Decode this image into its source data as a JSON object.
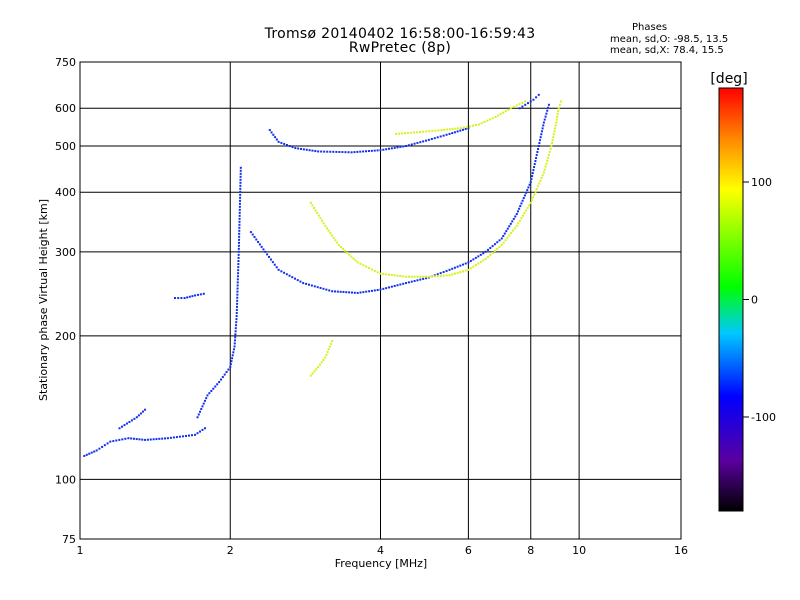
{
  "header": {
    "title": "Tromsø 20140402 16:58:00-16:59:43",
    "subtitle": "RwPretec (8p)",
    "phases_label": "Phases",
    "stats_o": "mean, sd,O: -98.5, 13.5",
    "stats_x": "mean, sd,X:  78.4, 15.5"
  },
  "colorbar": {
    "unit_label": "[deg]",
    "ticks": [
      "100",
      "0",
      "-100"
    ],
    "tick_values": [
      100,
      0,
      -100
    ],
    "range": [
      -180,
      180
    ]
  },
  "chart_data": {
    "type": "scatter",
    "title": "Tromsø 20140402 16:58:00-16:59:43",
    "subtitle": "RwPretec (8p)",
    "xlabel": "Frequency [MHz]",
    "ylabel": "Stationary phase Virtual Height [km]",
    "xscale": "log",
    "yscale": "log",
    "xlim": [
      1,
      16
    ],
    "ylim": [
      75,
      750
    ],
    "xticks": [
      1,
      2,
      4,
      6,
      8,
      10,
      16
    ],
    "xtick_labels": [
      "1",
      "2",
      "4",
      "6",
      "8",
      "10",
      "16"
    ],
    "yticks": [
      75,
      100,
      200,
      300,
      400,
      500,
      600,
      750
    ],
    "ytick_labels": [
      "75",
      "100",
      "200",
      "300",
      "400",
      "500",
      "600",
      "750"
    ],
    "grid": true,
    "color_encoding": "phase [deg]",
    "traces": [
      {
        "phase": -100,
        "points": [
          [
            1.02,
            112
          ],
          [
            1.08,
            115
          ],
          [
            1.15,
            120
          ],
          [
            1.25,
            122
          ],
          [
            1.35,
            121
          ],
          [
            1.5,
            122
          ],
          [
            1.7,
            124
          ],
          [
            1.78,
            128
          ]
        ]
      },
      {
        "phase": -100,
        "points": [
          [
            1.2,
            128
          ],
          [
            1.3,
            135
          ],
          [
            1.35,
            140
          ]
        ]
      },
      {
        "phase": -100,
        "points": [
          [
            1.55,
            240
          ],
          [
            1.62,
            240
          ],
          [
            1.7,
            243
          ],
          [
            1.77,
            245
          ]
        ]
      },
      {
        "phase": -100,
        "points": [
          [
            1.72,
            135
          ],
          [
            1.8,
            150
          ],
          [
            1.9,
            160
          ],
          [
            2.0,
            172
          ],
          [
            2.04,
            190
          ],
          [
            2.06,
            220
          ],
          [
            2.08,
            300
          ],
          [
            2.1,
            450
          ]
        ]
      },
      {
        "phase": -100,
        "points": [
          [
            2.2,
            330
          ],
          [
            2.35,
            300
          ],
          [
            2.5,
            275
          ],
          [
            2.8,
            258
          ],
          [
            3.2,
            248
          ],
          [
            3.6,
            246
          ],
          [
            4.0,
            250
          ],
          [
            4.5,
            258
          ],
          [
            5.0,
            265
          ],
          [
            5.5,
            275
          ],
          [
            6.0,
            285
          ],
          [
            6.5,
            300
          ],
          [
            7.0,
            320
          ],
          [
            7.5,
            360
          ],
          [
            8.0,
            420
          ],
          [
            8.3,
            500
          ],
          [
            8.5,
            560
          ],
          [
            8.7,
            610
          ]
        ]
      },
      {
        "phase": -100,
        "points": [
          [
            2.4,
            540
          ],
          [
            2.5,
            510
          ],
          [
            2.7,
            495
          ],
          [
            3.0,
            487
          ],
          [
            3.5,
            485
          ],
          [
            4.0,
            490
          ],
          [
            4.5,
            500
          ],
          [
            5.0,
            515
          ],
          [
            5.5,
            530
          ],
          [
            6.0,
            545
          ]
        ]
      },
      {
        "phase": 100,
        "points": [
          [
            2.9,
            380
          ],
          [
            3.1,
            340
          ],
          [
            3.3,
            310
          ],
          [
            3.6,
            285
          ],
          [
            4.0,
            270
          ],
          [
            4.5,
            266
          ],
          [
            5.0,
            266
          ],
          [
            5.5,
            268
          ],
          [
            6.0,
            275
          ],
          [
            6.5,
            290
          ],
          [
            7.0,
            310
          ],
          [
            7.5,
            340
          ],
          [
            8.0,
            380
          ],
          [
            8.5,
            440
          ],
          [
            8.8,
            500
          ],
          [
            9.0,
            560
          ],
          [
            9.1,
            600
          ],
          [
            9.2,
            620
          ]
        ]
      },
      {
        "phase": 100,
        "points": [
          [
            4.3,
            530
          ],
          [
            4.8,
            535
          ],
          [
            5.3,
            540
          ],
          [
            5.8,
            545
          ],
          [
            6.3,
            555
          ],
          [
            6.8,
            575
          ],
          [
            7.3,
            600
          ],
          [
            7.8,
            620
          ]
        ]
      },
      {
        "phase": 100,
        "points": [
          [
            2.9,
            165
          ],
          [
            3.0,
            172
          ],
          [
            3.1,
            180
          ],
          [
            3.2,
            195
          ]
        ]
      },
      {
        "phase": -100,
        "points": [
          [
            7.6,
            600
          ],
          [
            7.9,
            615
          ],
          [
            8.1,
            625
          ],
          [
            8.3,
            640
          ]
        ]
      }
    ]
  }
}
